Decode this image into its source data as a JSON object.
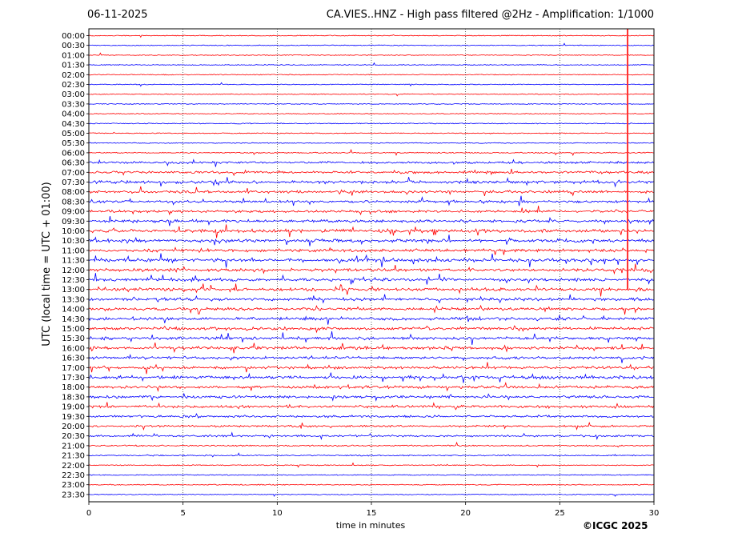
{
  "chart_data": {
    "type": "line",
    "title_left": "06-11-2025",
    "title": "CA.VIES..HNZ - High pass filtered @2Hz - Amplification: 1/1000",
    "xlabel": "time in minutes",
    "ylabel": "UTC (local time = UTC + 01:00)",
    "xlim": [
      0,
      30
    ],
    "x_ticks": [
      "0",
      "5",
      "10",
      "15",
      "20",
      "25",
      "30"
    ],
    "grid": "vertical dotted",
    "series_colors": [
      "#ff0000",
      "#0000ff"
    ],
    "rows": [
      "00:00",
      "00:30",
      "01:00",
      "01:30",
      "02:00",
      "02:30",
      "03:00",
      "03:30",
      "04:00",
      "04:30",
      "05:00",
      "05:30",
      "06:00",
      "06:30",
      "07:00",
      "07:30",
      "08:00",
      "08:30",
      "09:00",
      "09:30",
      "10:00",
      "10:30",
      "11:00",
      "11:30",
      "12:00",
      "12:30",
      "13:00",
      "13:30",
      "14:00",
      "14:30",
      "15:00",
      "15:30",
      "16:00",
      "16:30",
      "17:00",
      "17:30",
      "18:00",
      "18:30",
      "19:00",
      "19:30",
      "20:00",
      "20:30",
      "21:00",
      "21:30",
      "22:00",
      "22:30",
      "23:00",
      "23:30"
    ],
    "activity": [
      0.06,
      0.06,
      0.05,
      0.05,
      0.06,
      0.05,
      0.06,
      0.05,
      0.05,
      0.08,
      0.08,
      0.06,
      0.14,
      0.45,
      0.55,
      0.65,
      0.55,
      0.5,
      0.55,
      0.6,
      0.75,
      0.7,
      0.65,
      0.75,
      0.65,
      0.65,
      0.7,
      0.6,
      0.6,
      0.65,
      0.65,
      0.6,
      0.65,
      0.6,
      0.6,
      0.7,
      0.6,
      0.55,
      0.55,
      0.45,
      0.35,
      0.35,
      0.2,
      0.15,
      0.08,
      0.1,
      0.1,
      0.05
    ],
    "gap_at_minute": 28.6
  },
  "copyright": "©ICGC 2025"
}
